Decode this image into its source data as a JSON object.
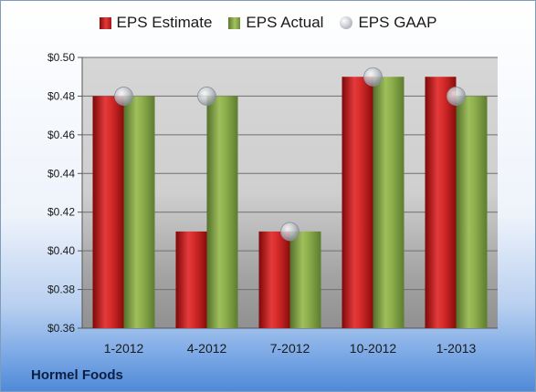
{
  "company": "Hormel Foods",
  "legend": {
    "estimate": "EPS Estimate",
    "actual": "EPS Actual",
    "gaap": "EPS GAAP"
  },
  "colors": {
    "estimate": "#d42a2a",
    "actual": "#8fb04e",
    "gaap": "#b8bcc4"
  },
  "chart_data": {
    "type": "bar",
    "categories": [
      "1-2012",
      "4-2012",
      "7-2012",
      "10-2012",
      "1-2013"
    ],
    "series": [
      {
        "name": "EPS Estimate",
        "values": [
          0.48,
          0.41,
          0.41,
          0.49,
          0.49
        ]
      },
      {
        "name": "EPS Actual",
        "values": [
          0.48,
          0.48,
          0.41,
          0.49,
          0.48
        ]
      },
      {
        "name": "EPS GAAP",
        "values": [
          0.48,
          0.48,
          0.41,
          0.49,
          0.48
        ]
      }
    ],
    "y_ticks": [
      "$0.36",
      "$0.38",
      "$0.40",
      "$0.42",
      "$0.44",
      "$0.46",
      "$0.48",
      "$0.50"
    ],
    "ylim": [
      0.36,
      0.5
    ],
    "grid": true,
    "legend_position": "top"
  }
}
